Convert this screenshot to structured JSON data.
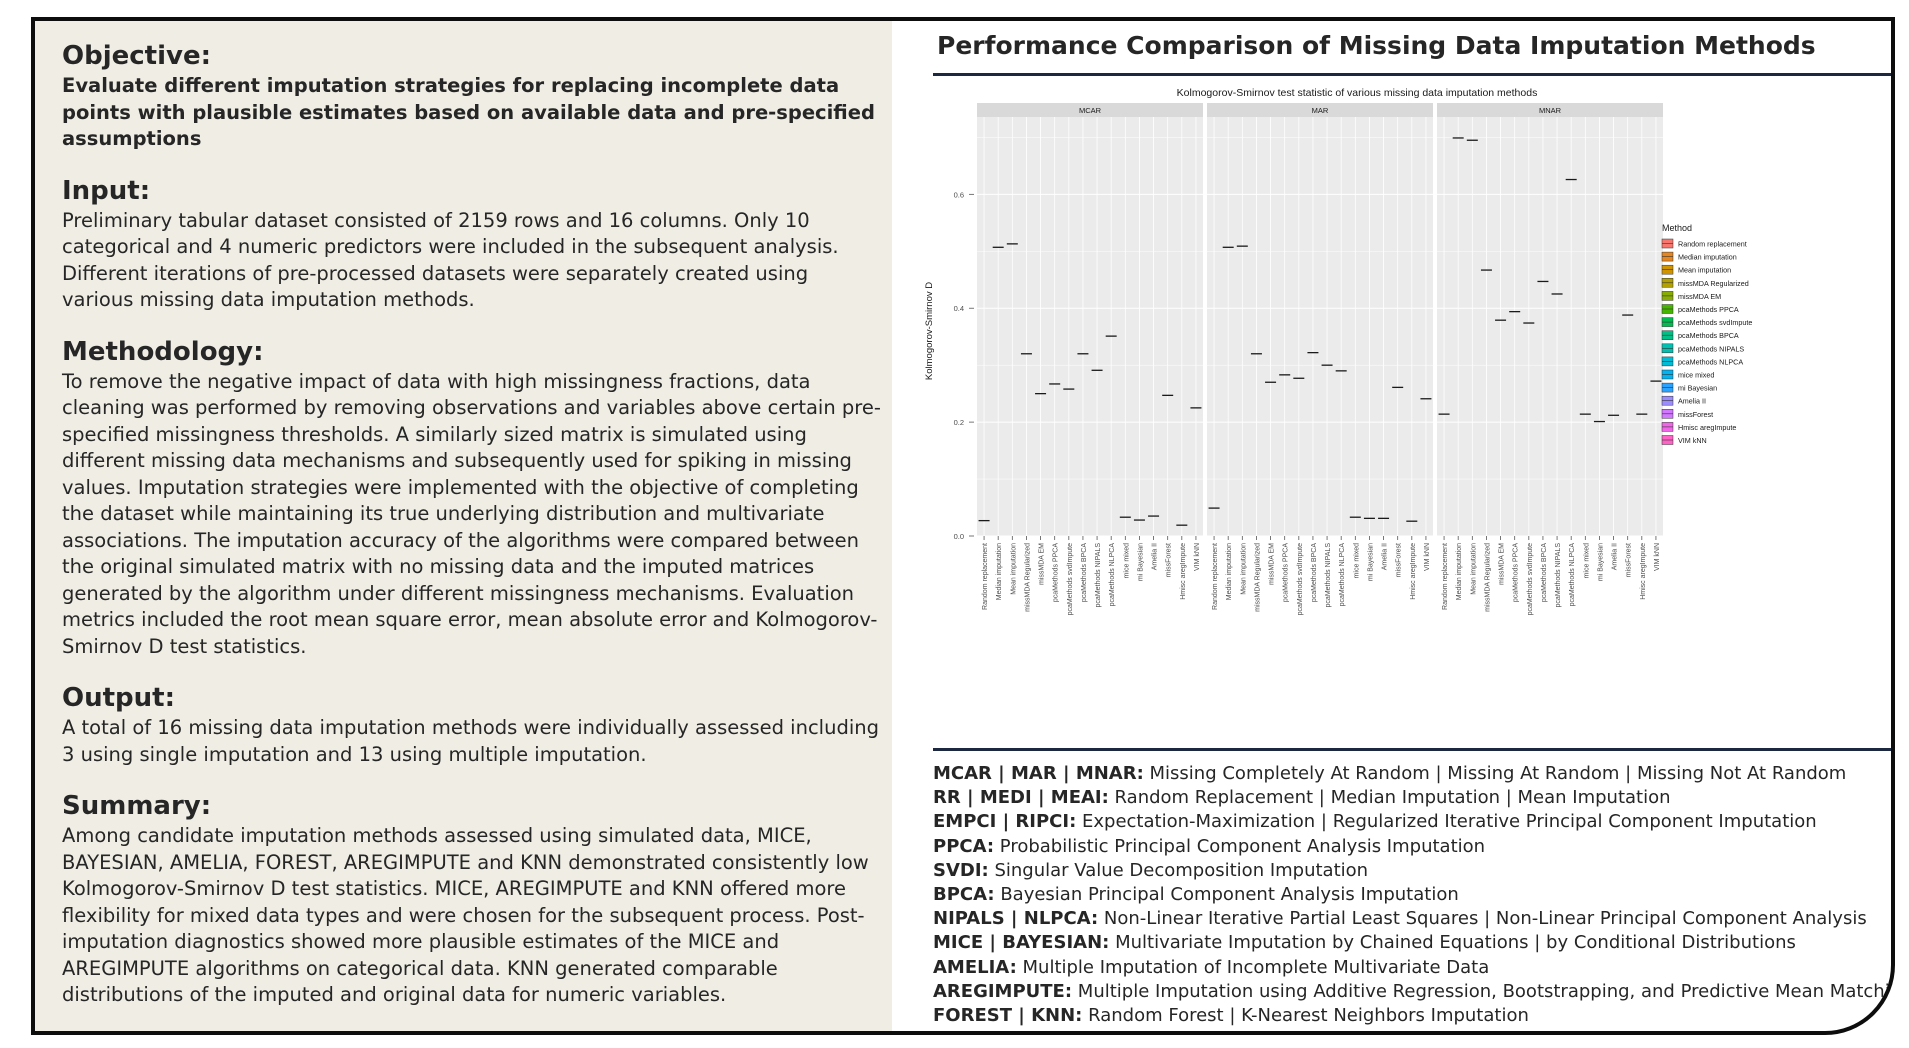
{
  "left": {
    "objective": {
      "heading": "Objective:",
      "text": "Evaluate different imputation strategies for replacing incomplete data points with plausible estimates based on available data and pre-specified assumptions"
    },
    "input": {
      "heading": "Input:",
      "text": "Preliminary tabular dataset consisted of 2159 rows and 16 columns. Only 10 categorical and 4 numeric predictors were included in the subsequent analysis. Different iterations of pre-processed datasets were separately created using various missing data imputation methods."
    },
    "methodology": {
      "heading": "Methodology:",
      "text": "To remove the negative impact of data with high missingness fractions, data cleaning was performed by removing observations and variables above certain pre-specified missingness thresholds. A similarly sized matrix is simulated using different missing data mechanisms and subsequently used for spiking in missing values. Imputation strategies were implemented with the objective of completing the dataset while maintaining its true underlying distribution and multivariate associations. The imputation accuracy of the algorithms were compared between the original simulated matrix with no missing data and the imputed matrices generated by the algorithm under different missingness mechanisms. Evaluation metrics included the root mean square error, mean absolute error and Kolmogorov-Smirnov D test statistics."
    },
    "output": {
      "heading": "Output:",
      "text": "A total of 16 missing data imputation methods were individually assessed including 3 using single imputation and 13 using multiple imputation."
    },
    "summary": {
      "heading": "Summary:",
      "text": "Among candidate imputation methods assessed using simulated data, MICE, BAYESIAN, AMELIA, FOREST, AREGIMPUTE and KNN demonstrated consistently low Kolmogorov-Smirnov D test statistics. MICE, AREGIMPUTE and KNN offered more flexibility for mixed data types and were chosen for the subsequent process. Post-imputation diagnostics showed more plausible estimates of the MICE and AREGIMPUTE algorithms on categorical data. KNN generated comparable distributions of the imputed and original data for numeric variables."
    }
  },
  "right": {
    "title": "Performance Comparison of Missing Data Imputation Methods",
    "abbreviations": [
      {
        "key": "MCAR | MAR | MNAR:",
        "value": " Missing Completely At Random | Missing At Random | Missing Not At Random"
      },
      {
        "key": "RR | MEDI | MEAI:",
        "value": " Random Replacement | Median Imputation | Mean Imputation"
      },
      {
        "key": "EMPCI | RIPCI:",
        "value": " Expectation-Maximization | Regularized Iterative Principal Component Imputation"
      },
      {
        "key": "PPCA:",
        "value": " Probabilistic Principal Component Analysis Imputation"
      },
      {
        "key": "SVDI:",
        "value": " Singular Value Decomposition Imputation"
      },
      {
        "key": "BPCA:",
        "value": " Bayesian Principal Component Analysis Imputation"
      },
      {
        "key": "NIPALS | NLPCA:",
        "value": " Non-Linear Iterative Partial Least Squares | Non-Linear Principal Component Analysis"
      },
      {
        "key": "MICE | BAYESIAN:",
        "value": " Multivariate Imputation by Chained Equations | by Conditional Distributions"
      },
      {
        "key": "AMELIA:",
        "value": " Multiple Imputation of Incomplete Multivariate Data"
      },
      {
        "key": "AREGIMPUTE:",
        "value": " Multiple Imputation using Additive Regression, Bootstrapping, and Predictive Mean Matching"
      },
      {
        "key": "FOREST | KNN:",
        "value": " Random Forest | K-Nearest Neighbors Imputation"
      }
    ]
  },
  "chart_data": {
    "type": "boxplot",
    "title": "Kolmogorov-Smirnov test statistic of various missing data imputation methods",
    "ylabel": "Kolmogorov-Smirnov D",
    "xlabel": "",
    "ylim": [
      0,
      0.72
    ],
    "yticks": [
      "0.0",
      "0.2",
      "0.4",
      "0.6"
    ],
    "legend_title": "Method",
    "legend_position": "right",
    "grid": true,
    "categories": [
      "Random replacement",
      "Median imputation",
      "Mean imputation",
      "missMDA Regularized",
      "missMDA EM",
      "pcaMethods PPCA",
      "pcaMethods svdImpute",
      "pcaMethods BPCA",
      "pcaMethods NIPALS",
      "pcaMethods NLPCA",
      "mice mixed",
      "mi Bayesian",
      "Amelia II",
      "missForest",
      "Hmisc aregImpute",
      "VIM kNN"
    ],
    "colors": [
      "#F8766D",
      "#E7851E",
      "#D09400",
      "#B2A100",
      "#89AC00",
      "#45B500",
      "#00BC51",
      "#00C087",
      "#00C0B2",
      "#00BCD6",
      "#00B3F2",
      "#29A3FF",
      "#9C8DFF",
      "#D277FF",
      "#F166E8",
      "#FF61C7"
    ],
    "panels": [
      {
        "name": "MCAR",
        "values": [
          0.027,
          0.507,
          0.513,
          0.32,
          0.25,
          0.267,
          0.258,
          0.32,
          0.291,
          0.351,
          0.033,
          0.028,
          0.035,
          0.247,
          0.019,
          0.225
        ]
      },
      {
        "name": "MAR",
        "values": [
          0.049,
          0.507,
          0.509,
          0.32,
          0.27,
          0.283,
          0.277,
          0.322,
          0.3,
          0.29,
          0.033,
          0.031,
          0.031,
          0.261,
          0.026,
          0.241
        ]
      },
      {
        "name": "MNAR",
        "values": [
          0.214,
          0.699,
          0.695,
          0.467,
          0.379,
          0.394,
          0.374,
          0.447,
          0.425,
          0.626,
          0.214,
          0.201,
          0.212,
          0.388,
          0.214,
          0.272
        ]
      }
    ]
  }
}
